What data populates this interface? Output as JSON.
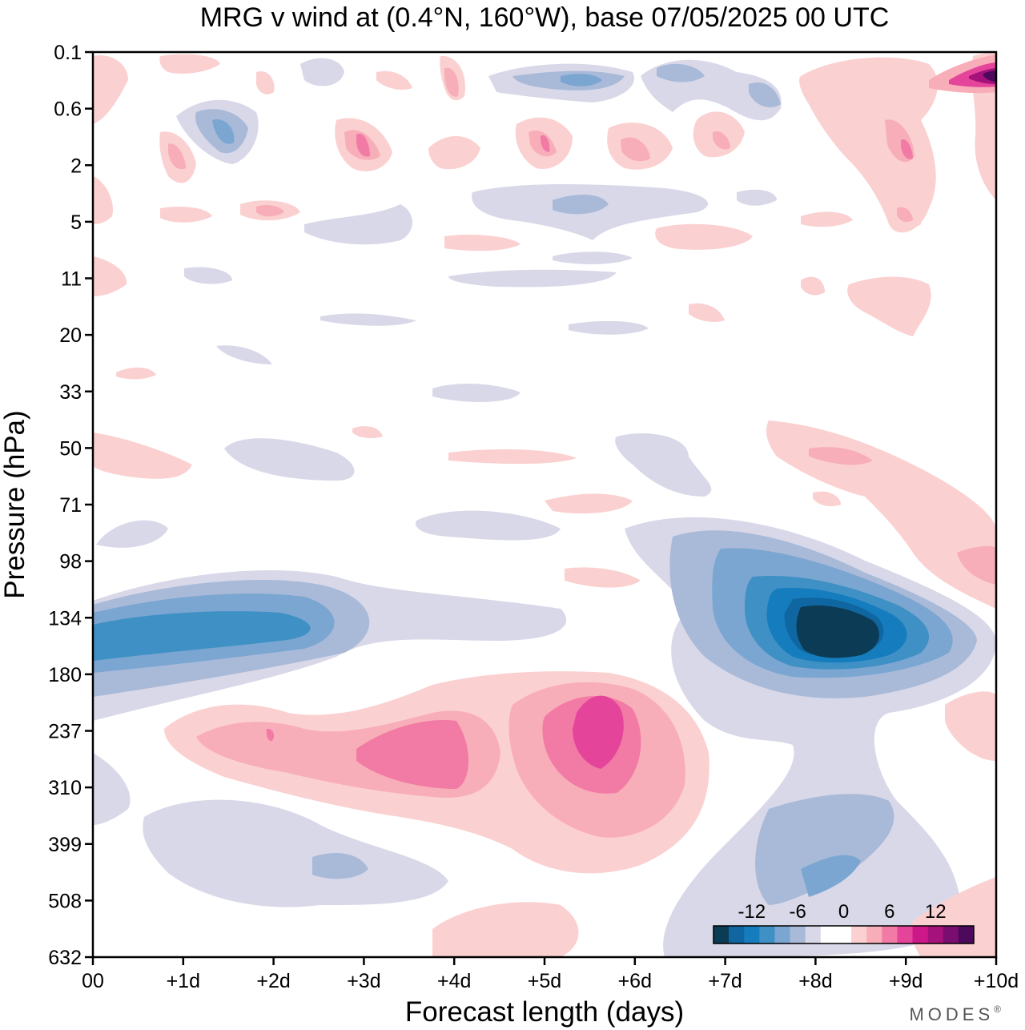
{
  "title": "MRG v wind at (0.4°N, 160°W),  base 07/05/2025  00 UTC",
  "brand": "MODES",
  "brand_mark": "®",
  "chart_data": {
    "type": "heatmap",
    "title": "MRG v wind at (0.4°N, 160°W),  base 07/05/2025  00 UTC",
    "xlabel": "Forecast length (days)",
    "ylabel": "Pressure (hPa)",
    "x_ticks": [
      "00",
      "+1d",
      "+2d",
      "+3d",
      "+4d",
      "+5d",
      "+6d",
      "+7d",
      "+8d",
      "+9d",
      "+10d"
    ],
    "xlim": [
      0,
      10
    ],
    "y_ticks": [
      "0.1",
      "0.6",
      "2",
      "5",
      "11",
      "20",
      "33",
      "50",
      "71",
      "98",
      "134",
      "180",
      "237",
      "310",
      "399",
      "508",
      "632"
    ],
    "y_scale": "log (pressure levels, increasing downward)",
    "colorbar": {
      "labels": [
        "-12",
        "-6",
        "0",
        "6",
        "12"
      ],
      "levels": [
        -16,
        -14,
        -12,
        -10,
        -8,
        -6,
        -4,
        -2,
        0,
        2,
        4,
        6,
        8,
        10,
        12,
        14,
        16
      ],
      "colors": [
        "#0c3b55",
        "#1066a0",
        "#157dbd",
        "#3f90c5",
        "#7aa6d1",
        "#a9bad9",
        "#d9d8e8",
        "#ffffff",
        "#ffffff",
        "#fbd0d0",
        "#f8aeb8",
        "#f27ba5",
        "#e5449b",
        "#cd1889",
        "#a5127c",
        "#7a0d70",
        "#4d0a5c"
      ]
    },
    "features": [
      {
        "name": "negative core (strongest)",
        "x_day": 8.4,
        "pressure_hpa": 140,
        "value_min": -16
      },
      {
        "name": "negative band",
        "x_range_day": [
          0,
          3
        ],
        "pressure_hpa": 140,
        "value_min": -10
      },
      {
        "name": "positive core",
        "x_day": 5.5,
        "pressure_hpa": 237,
        "value_max": 10
      },
      {
        "name": "positive core",
        "x_day": 3.6,
        "pressure_hpa": 260,
        "value_max": 8
      },
      {
        "name": "negative lobe",
        "x_day": 8.5,
        "pressure_hpa": 450,
        "value_min": -6
      },
      {
        "name": "positive top-right",
        "x_day": 9.9,
        "pressure_hpa": 0.25,
        "value_max": 16
      }
    ]
  },
  "colors": {
    "axis": "#000000",
    "background": "#ffffff"
  }
}
